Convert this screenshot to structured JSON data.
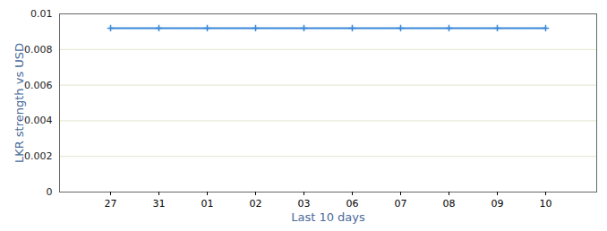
{
  "chart_data": {
    "type": "line",
    "x_label": "Last 10 days",
    "y_label": "LKR strength vs USD",
    "categories": [
      "27",
      "31",
      "01",
      "02",
      "03",
      "06",
      "07",
      "08",
      "09",
      "10"
    ],
    "values": [
      0.0092,
      0.0092,
      0.0092,
      0.0092,
      0.0092,
      0.0092,
      0.0092,
      0.0092,
      0.0092,
      0.0092
    ],
    "color": "#3a87d6",
    "marker": "plus",
    "line_style": "solid",
    "ylim": [
      0,
      0.01
    ],
    "yticks": [
      0,
      0.002,
      0.004,
      0.006,
      0.008,
      0.01
    ],
    "grid": true
  }
}
